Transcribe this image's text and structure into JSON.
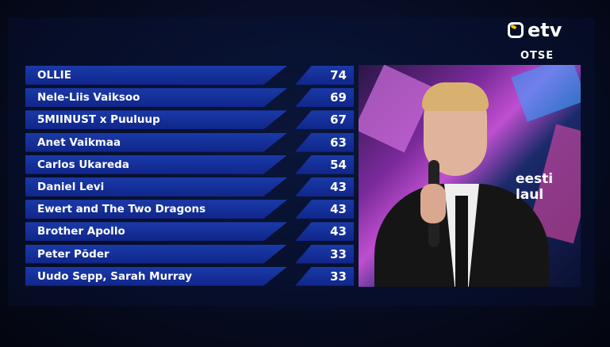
{
  "channel": {
    "logo_text": "etv",
    "live_label": "OTSE",
    "logo_accent": "#f3c500"
  },
  "scoreboard": {
    "accent": "#1a3aa8",
    "rows": [
      {
        "name": "OLLIE",
        "score": "74"
      },
      {
        "name": "Nele-Liis Vaiksoo",
        "score": "69"
      },
      {
        "name": "5MIINUST x Puuluup",
        "score": "67"
      },
      {
        "name": "Anet Vaikmaa",
        "score": "63"
      },
      {
        "name": "Carlos Ukareda",
        "score": "54"
      },
      {
        "name": "Daniel Levi",
        "score": "43"
      },
      {
        "name": "Ewert and The Two Dragons",
        "score": "43"
      },
      {
        "name": "Brother Apollo",
        "score": "43"
      },
      {
        "name": "Peter Põder",
        "score": "33"
      },
      {
        "name": "Uudo Sepp, Sarah Murray",
        "score": "33"
      }
    ]
  },
  "video": {
    "show_logo": "eesti laul"
  }
}
